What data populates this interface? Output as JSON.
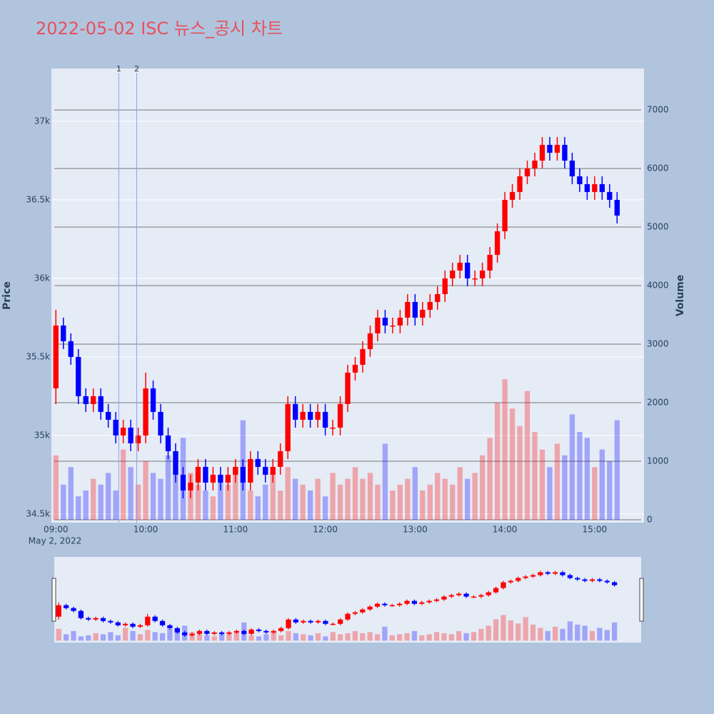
{
  "chart_data": {
    "type": "candlestick",
    "title": "2022-05-02 ISC 뉴스_공시 차트",
    "y_label": "Price",
    "y2_label": "Volume",
    "x_date_label": "May 2, 2022",
    "increasing_color": "#ff0000",
    "decreasing_color": "#0000ff",
    "x": [
      "2022-05-02T09:00",
      "2022-05-02T09:05",
      "2022-05-02T09:10",
      "2022-05-02T09:15",
      "2022-05-02T09:20",
      "2022-05-02T09:25",
      "2022-05-02T09:30",
      "2022-05-02T09:35",
      "2022-05-02T09:40",
      "2022-05-02T09:45",
      "2022-05-02T09:50",
      "2022-05-02T09:55",
      "2022-05-02T10:00",
      "2022-05-02T10:05",
      "2022-05-02T10:10",
      "2022-05-02T10:15",
      "2022-05-02T10:20",
      "2022-05-02T10:25",
      "2022-05-02T10:30",
      "2022-05-02T10:35",
      "2022-05-02T10:40",
      "2022-05-02T10:45",
      "2022-05-02T10:50",
      "2022-05-02T10:55",
      "2022-05-02T11:00",
      "2022-05-02T11:05",
      "2022-05-02T11:10",
      "2022-05-02T11:15",
      "2022-05-02T11:20",
      "2022-05-02T11:25",
      "2022-05-02T11:30",
      "2022-05-02T11:35",
      "2022-05-02T11:40",
      "2022-05-02T11:45",
      "2022-05-02T11:50",
      "2022-05-02T11:55",
      "2022-05-02T12:00",
      "2022-05-02T12:05",
      "2022-05-02T12:10",
      "2022-05-02T12:15",
      "2022-05-02T12:20",
      "2022-05-02T12:25",
      "2022-05-02T12:30",
      "2022-05-02T12:35",
      "2022-05-02T12:40",
      "2022-05-02T12:45",
      "2022-05-02T12:50",
      "2022-05-02T12:55",
      "2022-05-02T13:00",
      "2022-05-02T13:05",
      "2022-05-02T13:10",
      "2022-05-02T13:15",
      "2022-05-02T13:20",
      "2022-05-02T13:25",
      "2022-05-02T13:30",
      "2022-05-02T13:35",
      "2022-05-02T13:40",
      "2022-05-02T13:45",
      "2022-05-02T13:50",
      "2022-05-02T13:55",
      "2022-05-02T14:00",
      "2022-05-02T14:05",
      "2022-05-02T14:10",
      "2022-05-02T14:15",
      "2022-05-02T14:20",
      "2022-05-02T14:25",
      "2022-05-02T14:30",
      "2022-05-02T14:35",
      "2022-05-02T14:40",
      "2022-05-02T14:45",
      "2022-05-02T14:50",
      "2022-05-02T14:55",
      "2022-05-02T15:00",
      "2022-05-02T15:05",
      "2022-05-02T15:10",
      "2022-05-02T15:15"
    ],
    "open": [
      35300,
      35700,
      35600,
      35500,
      35250,
      35200,
      35250,
      35150,
      35100,
      35000,
      35050,
      34950,
      35000,
      35300,
      35150,
      35000,
      34900,
      34750,
      34650,
      34700,
      34800,
      34700,
      34750,
      34700,
      34750,
      34800,
      34700,
      34850,
      34800,
      34750,
      34800,
      34900,
      35200,
      35100,
      35150,
      35100,
      35150,
      35050,
      35050,
      35200,
      35400,
      35450,
      35550,
      35650,
      35750,
      35700,
      35700,
      35750,
      35850,
      35750,
      35800,
      35850,
      35900,
      36000,
      36050,
      36100,
      36000,
      36000,
      36050,
      36150,
      36300,
      36500,
      36550,
      36650,
      36700,
      36750,
      36850,
      36800,
      36850,
      36750,
      36650,
      36600,
      36550,
      36600,
      36550,
      36500
    ],
    "high": [
      35800,
      35750,
      35650,
      35550,
      35300,
      35300,
      35300,
      35200,
      35150,
      35100,
      35100,
      35050,
      35400,
      35350,
      35200,
      35050,
      34950,
      34800,
      34750,
      34850,
      34850,
      34800,
      34800,
      34800,
      34850,
      34850,
      34900,
      34900,
      34850,
      34850,
      34950,
      35250,
      35250,
      35200,
      35200,
      35200,
      35200,
      35100,
      35250,
      35450,
      35500,
      35600,
      35700,
      35800,
      35800,
      35750,
      35800,
      35900,
      35900,
      35850,
      35900,
      35950,
      36050,
      36100,
      36150,
      36150,
      36050,
      36100,
      36200,
      36350,
      36550,
      36600,
      36700,
      36750,
      36800,
      36900,
      36900,
      36900,
      36900,
      36800,
      36700,
      36650,
      36650,
      36650,
      36600,
      36550
    ],
    "low": [
      35200,
      35550,
      35450,
      35200,
      35150,
      35150,
      35100,
      35050,
      34950,
      34950,
      34900,
      34900,
      34950,
      35100,
      34950,
      34850,
      34700,
      34600,
      34600,
      34650,
      34650,
      34650,
      34650,
      34650,
      34700,
      34650,
      34650,
      34750,
      34700,
      34700,
      34750,
      34850,
      35050,
      35050,
      35050,
      35050,
      35000,
      35000,
      35000,
      35150,
      35350,
      35400,
      35500,
      35600,
      35650,
      35650,
      35650,
      35700,
      35700,
      35700,
      35750,
      35800,
      35850,
      35950,
      36000,
      35950,
      35950,
      35950,
      36000,
      36100,
      36250,
      36450,
      36500,
      36600,
      36650,
      36700,
      36750,
      36750,
      36700,
      36600,
      36550,
      36500,
      36500,
      36500,
      36450,
      36350
    ],
    "close": [
      35700,
      35600,
      35500,
      35250,
      35200,
      35250,
      35150,
      35100,
      35000,
      35050,
      34950,
      35000,
      35300,
      35150,
      35000,
      34900,
      34750,
      34650,
      34700,
      34800,
      34700,
      34750,
      34700,
      34750,
      34800,
      34700,
      34850,
      34800,
      34750,
      34800,
      34900,
      35200,
      35100,
      35150,
      35100,
      35150,
      35050,
      35050,
      35200,
      35400,
      35450,
      35550,
      35650,
      35750,
      35700,
      35700,
      35750,
      35850,
      35750,
      35800,
      35850,
      35900,
      36000,
      36050,
      36100,
      36000,
      36000,
      36050,
      36150,
      36300,
      36500,
      36550,
      36650,
      36700,
      36750,
      36850,
      36800,
      36850,
      36750,
      36650,
      36600,
      36550,
      36600,
      36550,
      36500,
      36400
    ],
    "volume": [
      1100,
      600,
      900,
      400,
      500,
      700,
      600,
      800,
      500,
      1200,
      900,
      600,
      1000,
      800,
      700,
      1100,
      900,
      1400,
      800,
      600,
      500,
      400,
      700,
      600,
      900,
      1700,
      500,
      400,
      600,
      800,
      500,
      900,
      700,
      600,
      500,
      700,
      400,
      800,
      600,
      700,
      900,
      700,
      800,
      600,
      1300,
      500,
      600,
      700,
      900,
      500,
      600,
      800,
      700,
      600,
      900,
      700,
      800,
      1100,
      1400,
      2000,
      2400,
      1900,
      1600,
      2200,
      1500,
      1200,
      900,
      1300,
      1100,
      1800,
      1500,
      1400,
      900,
      1200,
      1000,
      1700
    ],
    "annotations": [
      {
        "x": "2022-05-02T09:42",
        "text": "1"
      },
      {
        "x": "2022-05-02T09:54",
        "text": "2"
      }
    ],
    "xlim": [
      "2022-05-02T08:57",
      "2022-05-02T15:33"
    ],
    "xticks": [
      {
        "value": "2022-05-02T09:00",
        "label": "09:00"
      },
      {
        "value": "2022-05-02T10:00",
        "label": "10:00"
      },
      {
        "value": "2022-05-02T11:00",
        "label": "11:00"
      },
      {
        "value": "2022-05-02T12:00",
        "label": "12:00"
      },
      {
        "value": "2022-05-02T13:00",
        "label": "13:00"
      },
      {
        "value": "2022-05-02T14:00",
        "label": "14:00"
      },
      {
        "value": "2022-05-02T15:00",
        "label": "15:00"
      }
    ],
    "ylim": [
      34445,
      37336
    ],
    "yticks": [
      {
        "value": 34500,
        "label": "34.5k"
      },
      {
        "value": 35000,
        "label": "35k"
      },
      {
        "value": 35500,
        "label": "35.5k"
      },
      {
        "value": 36000,
        "label": "36k"
      },
      {
        "value": 36500,
        "label": "36.5k"
      },
      {
        "value": 37000,
        "label": "37k"
      }
    ],
    "y2lim": [
      -49,
      7707
    ],
    "y2ticks": [
      0,
      1000,
      2000,
      3000,
      4000,
      5000,
      6000,
      7000
    ],
    "grid": true,
    "rangeslider": true
  }
}
